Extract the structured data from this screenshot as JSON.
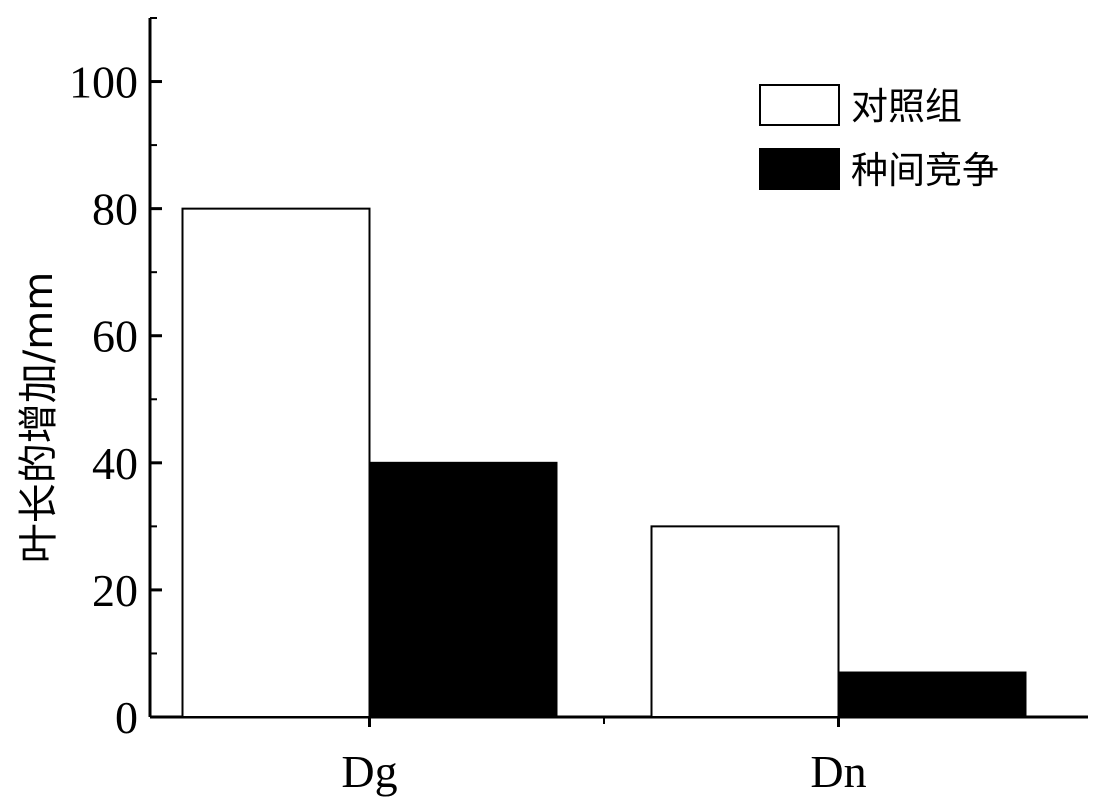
{
  "chart_data": {
    "type": "bar",
    "title": "",
    "xlabel": "",
    "ylabel": "叶长的增加/mm",
    "ylim": [
      0,
      110
    ],
    "yticks": [
      0,
      20,
      40,
      60,
      80,
      100
    ],
    "categories": [
      "Dg",
      "Dn"
    ],
    "series": [
      {
        "name": "对照组",
        "values": [
          80,
          30
        ],
        "fill": "#ffffff",
        "stroke": "#000000"
      },
      {
        "name": "种间竞争",
        "values": [
          40,
          7
        ],
        "fill": "#000000",
        "stroke": "#000000"
      }
    ],
    "legend": "top-right",
    "grid": false
  }
}
